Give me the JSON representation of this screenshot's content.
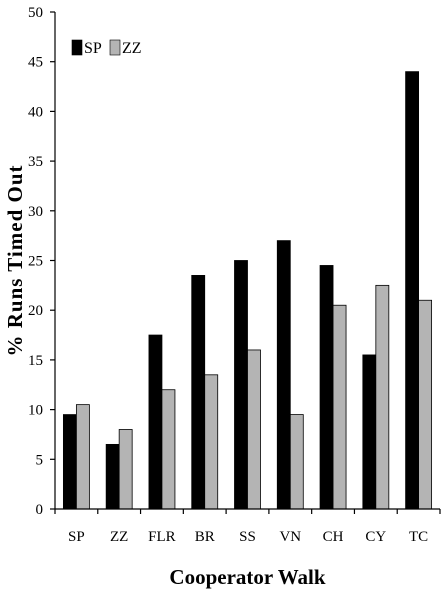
{
  "chart_data": {
    "type": "bar",
    "title": "",
    "xlabel": "Cooperator Walk",
    "ylabel": "% Runs Timed Out",
    "ylim": [
      0,
      50
    ],
    "yticks": [
      0,
      5,
      10,
      15,
      20,
      25,
      30,
      35,
      40,
      45,
      50
    ],
    "categories": [
      "SP",
      "ZZ",
      "FLR",
      "BR",
      "SS",
      "VN",
      "CH",
      "CY",
      "TC"
    ],
    "series": [
      {
        "name": "SP",
        "color": "#000000",
        "values": [
          9.5,
          6.5,
          17.5,
          23.5,
          25,
          27,
          24.5,
          15.5,
          44
        ]
      },
      {
        "name": "ZZ",
        "color": "#b4b4b4",
        "values": [
          10.5,
          8,
          12,
          13.5,
          16,
          9.5,
          20.5,
          22.5,
          21
        ]
      }
    ],
    "grid": false,
    "legend": "top-left"
  }
}
